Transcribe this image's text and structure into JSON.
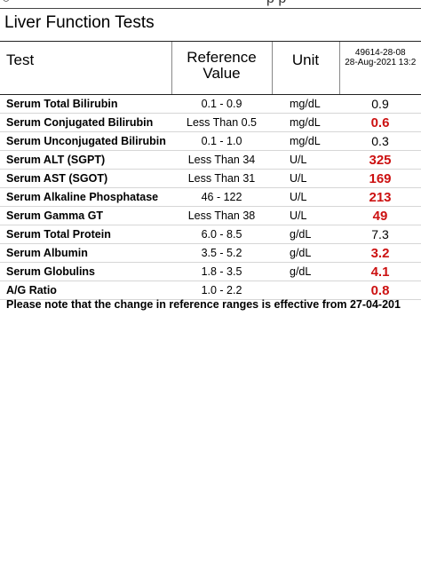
{
  "report": {
    "title": "Liver Function Tests",
    "columns": {
      "test": "Test",
      "reference": "Reference Value",
      "unit": "Unit",
      "result_id": "49614-28-08",
      "result_date": "28-Aug-2021 13:2"
    },
    "rows": [
      {
        "test": "Serum Total Bilirubin",
        "reference": "0.1  -  0.9",
        "unit": "mg/dL",
        "result": "0.9",
        "abnormal": false
      },
      {
        "test": "Serum Conjugated Bilirubin",
        "reference": "Less Than 0.5",
        "unit": "mg/dL",
        "result": "0.6",
        "abnormal": true
      },
      {
        "test": "Serum Unconjugated Bilirubin",
        "reference": "0.1  -  1.0",
        "unit": "mg/dL",
        "result": "0.3",
        "abnormal": false
      },
      {
        "test": "Serum ALT (SGPT)",
        "reference": "Less Than 34",
        "unit": "U/L",
        "result": "325",
        "abnormal": true
      },
      {
        "test": "Serum AST (SGOT)",
        "reference": "Less Than 31",
        "unit": "U/L",
        "result": "169",
        "abnormal": true
      },
      {
        "test": "Serum Alkaline Phosphatase",
        "reference": "46  -  122",
        "unit": "U/L",
        "result": "213",
        "abnormal": true
      },
      {
        "test": "Serum Gamma GT",
        "reference": "Less Than 38",
        "unit": "U/L",
        "result": "49",
        "abnormal": true
      },
      {
        "test": "Serum Total Protein",
        "reference": "6.0  -  8.5",
        "unit": "g/dL",
        "result": "7.3",
        "abnormal": false
      },
      {
        "test": "Serum Albumin",
        "reference": "3.5  -  5.2",
        "unit": "g/dL",
        "result": "3.2",
        "abnormal": true
      },
      {
        "test": "Serum Globulins",
        "reference": "1.8  -  3.5",
        "unit": "g/dL",
        "result": "4.1",
        "abnormal": true
      },
      {
        "test": "A/G Ratio",
        "reference": "1.0  -  2.2",
        "unit": "",
        "result": "0.8",
        "abnormal": true
      }
    ],
    "note": "Please note that the change in reference ranges is effective from 27-04-201"
  }
}
